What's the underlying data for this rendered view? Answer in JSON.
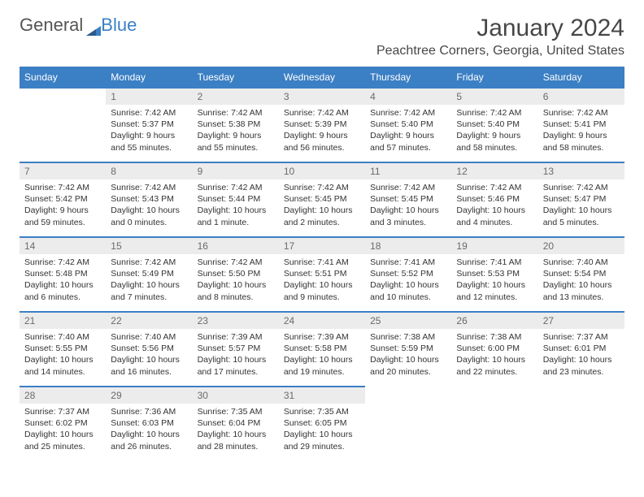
{
  "brand": {
    "name1": "General",
    "name2": "Blue"
  },
  "title": "January 2024",
  "location": "Peachtree Corners, Georgia, United States",
  "colors": {
    "accent": "#3b7fc4",
    "daynum_bg": "#ececec",
    "text": "#333333",
    "header_text": "#ffffff",
    "title_text": "#474747"
  },
  "typography": {
    "title_fontsize": 30,
    "location_fontsize": 16,
    "dayheader_fontsize": 12,
    "body_fontsize": 10.5
  },
  "layout": {
    "columns": 7,
    "rows": 5,
    "border_color": "#3b7fc4",
    "border_width": 2
  },
  "dayHeaders": [
    "Sunday",
    "Monday",
    "Tuesday",
    "Wednesday",
    "Thursday",
    "Friday",
    "Saturday"
  ],
  "weeks": [
    [
      null,
      {
        "n": "1",
        "sunrise": "Sunrise: 7:42 AM",
        "sunset": "Sunset: 5:37 PM",
        "daylight": "Daylight: 9 hours and 55 minutes."
      },
      {
        "n": "2",
        "sunrise": "Sunrise: 7:42 AM",
        "sunset": "Sunset: 5:38 PM",
        "daylight": "Daylight: 9 hours and 55 minutes."
      },
      {
        "n": "3",
        "sunrise": "Sunrise: 7:42 AM",
        "sunset": "Sunset: 5:39 PM",
        "daylight": "Daylight: 9 hours and 56 minutes."
      },
      {
        "n": "4",
        "sunrise": "Sunrise: 7:42 AM",
        "sunset": "Sunset: 5:40 PM",
        "daylight": "Daylight: 9 hours and 57 minutes."
      },
      {
        "n": "5",
        "sunrise": "Sunrise: 7:42 AM",
        "sunset": "Sunset: 5:40 PM",
        "daylight": "Daylight: 9 hours and 58 minutes."
      },
      {
        "n": "6",
        "sunrise": "Sunrise: 7:42 AM",
        "sunset": "Sunset: 5:41 PM",
        "daylight": "Daylight: 9 hours and 58 minutes."
      }
    ],
    [
      {
        "n": "7",
        "sunrise": "Sunrise: 7:42 AM",
        "sunset": "Sunset: 5:42 PM",
        "daylight": "Daylight: 9 hours and 59 minutes."
      },
      {
        "n": "8",
        "sunrise": "Sunrise: 7:42 AM",
        "sunset": "Sunset: 5:43 PM",
        "daylight": "Daylight: 10 hours and 0 minutes."
      },
      {
        "n": "9",
        "sunrise": "Sunrise: 7:42 AM",
        "sunset": "Sunset: 5:44 PM",
        "daylight": "Daylight: 10 hours and 1 minute."
      },
      {
        "n": "10",
        "sunrise": "Sunrise: 7:42 AM",
        "sunset": "Sunset: 5:45 PM",
        "daylight": "Daylight: 10 hours and 2 minutes."
      },
      {
        "n": "11",
        "sunrise": "Sunrise: 7:42 AM",
        "sunset": "Sunset: 5:45 PM",
        "daylight": "Daylight: 10 hours and 3 minutes."
      },
      {
        "n": "12",
        "sunrise": "Sunrise: 7:42 AM",
        "sunset": "Sunset: 5:46 PM",
        "daylight": "Daylight: 10 hours and 4 minutes."
      },
      {
        "n": "13",
        "sunrise": "Sunrise: 7:42 AM",
        "sunset": "Sunset: 5:47 PM",
        "daylight": "Daylight: 10 hours and 5 minutes."
      }
    ],
    [
      {
        "n": "14",
        "sunrise": "Sunrise: 7:42 AM",
        "sunset": "Sunset: 5:48 PM",
        "daylight": "Daylight: 10 hours and 6 minutes."
      },
      {
        "n": "15",
        "sunrise": "Sunrise: 7:42 AM",
        "sunset": "Sunset: 5:49 PM",
        "daylight": "Daylight: 10 hours and 7 minutes."
      },
      {
        "n": "16",
        "sunrise": "Sunrise: 7:42 AM",
        "sunset": "Sunset: 5:50 PM",
        "daylight": "Daylight: 10 hours and 8 minutes."
      },
      {
        "n": "17",
        "sunrise": "Sunrise: 7:41 AM",
        "sunset": "Sunset: 5:51 PM",
        "daylight": "Daylight: 10 hours and 9 minutes."
      },
      {
        "n": "18",
        "sunrise": "Sunrise: 7:41 AM",
        "sunset": "Sunset: 5:52 PM",
        "daylight": "Daylight: 10 hours and 10 minutes."
      },
      {
        "n": "19",
        "sunrise": "Sunrise: 7:41 AM",
        "sunset": "Sunset: 5:53 PM",
        "daylight": "Daylight: 10 hours and 12 minutes."
      },
      {
        "n": "20",
        "sunrise": "Sunrise: 7:40 AM",
        "sunset": "Sunset: 5:54 PM",
        "daylight": "Daylight: 10 hours and 13 minutes."
      }
    ],
    [
      {
        "n": "21",
        "sunrise": "Sunrise: 7:40 AM",
        "sunset": "Sunset: 5:55 PM",
        "daylight": "Daylight: 10 hours and 14 minutes."
      },
      {
        "n": "22",
        "sunrise": "Sunrise: 7:40 AM",
        "sunset": "Sunset: 5:56 PM",
        "daylight": "Daylight: 10 hours and 16 minutes."
      },
      {
        "n": "23",
        "sunrise": "Sunrise: 7:39 AM",
        "sunset": "Sunset: 5:57 PM",
        "daylight": "Daylight: 10 hours and 17 minutes."
      },
      {
        "n": "24",
        "sunrise": "Sunrise: 7:39 AM",
        "sunset": "Sunset: 5:58 PM",
        "daylight": "Daylight: 10 hours and 19 minutes."
      },
      {
        "n": "25",
        "sunrise": "Sunrise: 7:38 AM",
        "sunset": "Sunset: 5:59 PM",
        "daylight": "Daylight: 10 hours and 20 minutes."
      },
      {
        "n": "26",
        "sunrise": "Sunrise: 7:38 AM",
        "sunset": "Sunset: 6:00 PM",
        "daylight": "Daylight: 10 hours and 22 minutes."
      },
      {
        "n": "27",
        "sunrise": "Sunrise: 7:37 AM",
        "sunset": "Sunset: 6:01 PM",
        "daylight": "Daylight: 10 hours and 23 minutes."
      }
    ],
    [
      {
        "n": "28",
        "sunrise": "Sunrise: 7:37 AM",
        "sunset": "Sunset: 6:02 PM",
        "daylight": "Daylight: 10 hours and 25 minutes."
      },
      {
        "n": "29",
        "sunrise": "Sunrise: 7:36 AM",
        "sunset": "Sunset: 6:03 PM",
        "daylight": "Daylight: 10 hours and 26 minutes."
      },
      {
        "n": "30",
        "sunrise": "Sunrise: 7:35 AM",
        "sunset": "Sunset: 6:04 PM",
        "daylight": "Daylight: 10 hours and 28 minutes."
      },
      {
        "n": "31",
        "sunrise": "Sunrise: 7:35 AM",
        "sunset": "Sunset: 6:05 PM",
        "daylight": "Daylight: 10 hours and 29 minutes."
      },
      null,
      null,
      null
    ]
  ]
}
